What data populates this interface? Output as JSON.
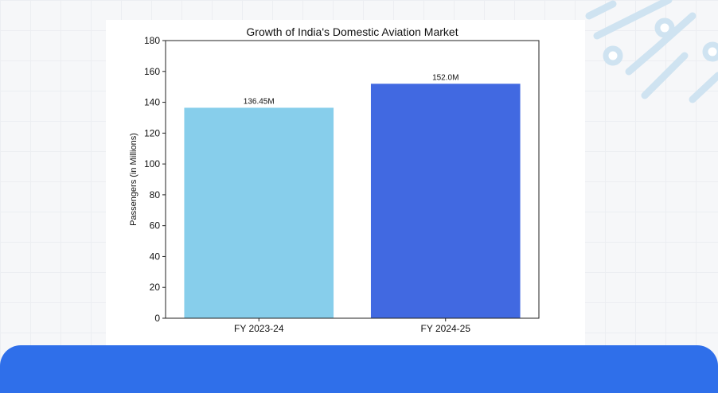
{
  "chart_data": {
    "type": "bar",
    "title": "Growth of India's Domestic Aviation Market",
    "xlabel": "",
    "ylabel": "Passengers (in Millions)",
    "categories": [
      "FY 2023-24",
      "FY 2024-25"
    ],
    "values": [
      136.45,
      152.0
    ],
    "data_labels": [
      "136.45M",
      "152.0M"
    ],
    "colors": [
      "#87ceeb",
      "#4169e1"
    ],
    "ylim": [
      0,
      180
    ],
    "yticks": [
      0,
      20,
      40,
      60,
      80,
      100,
      120,
      140,
      160,
      180
    ],
    "grid": false
  },
  "colors": {
    "accent": "#2f6fea",
    "decoration": "#cfe3f1"
  }
}
